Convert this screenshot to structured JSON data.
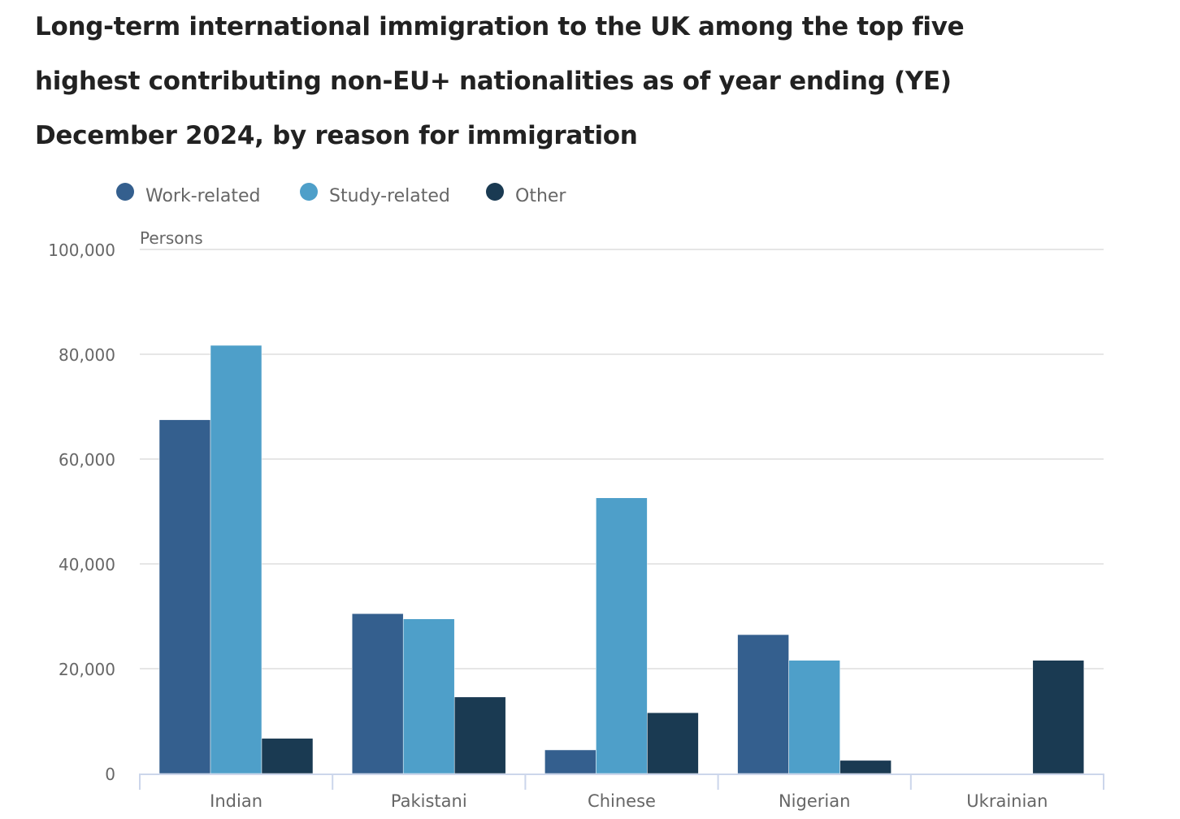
{
  "title": "Long-term international immigration to the UK among the top five highest contributing non-EU+ nationalities as of year ending (YE) December 2024, by reason for immigration",
  "chart_data": {
    "type": "bar",
    "title": "Long-term international immigration to the UK among the top five highest contributing non-EU+ nationalities as of year ending (YE) December 2024, by reason for immigration",
    "ylabel": "Persons",
    "xlabel": "",
    "ylim": [
      0,
      100000
    ],
    "yticks": [
      0,
      20000,
      40000,
      60000,
      80000,
      100000
    ],
    "ytick_labels": [
      "0",
      "20,000",
      "40,000",
      "60,000",
      "80,000",
      "100,000"
    ],
    "grid": true,
    "legend_position": "top-left",
    "categories": [
      "Indian",
      "Pakistani",
      "Chinese",
      "Nigerian",
      "Ukrainian"
    ],
    "series": [
      {
        "name": "Work-related",
        "color": "#345f8e",
        "values": [
          67500,
          30500,
          4500,
          26500,
          0
        ]
      },
      {
        "name": "Study-related",
        "color": "#4e9fc9",
        "values": [
          81700,
          29500,
          52600,
          21600,
          0
        ]
      },
      {
        "name": "Other",
        "color": "#1a3a52",
        "values": [
          6700,
          14600,
          11600,
          2500,
          21600
        ]
      }
    ]
  }
}
